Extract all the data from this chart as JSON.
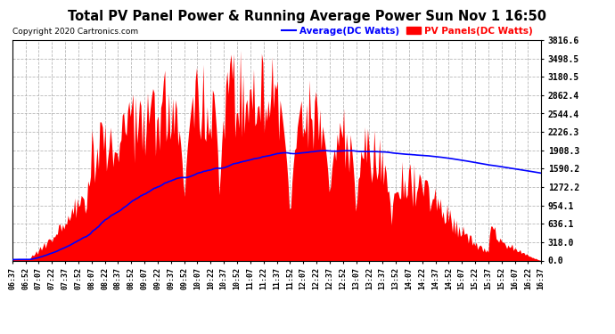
{
  "title": "Total PV Panel Power & Running Average Power Sun Nov 1 16:50",
  "copyright": "Copyright 2020 Cartronics.com",
  "legend_avg": "Average(DC Watts)",
  "legend_pv": "PV Panels(DC Watts)",
  "y_max": 3816.6,
  "y_ticks": [
    0.0,
    318.0,
    636.1,
    954.1,
    1272.2,
    1590.2,
    1908.3,
    2226.3,
    2544.4,
    2862.4,
    3180.5,
    3498.5,
    3816.6
  ],
  "background_color": "#ffffff",
  "grid_color": "#b0b0b0",
  "bar_color": "#ff0000",
  "line_color": "#0000ff",
  "title_color": "#000000",
  "copyright_color": "#000000",
  "legend_avg_color": "#0000ff",
  "legend_pv_color": "#ff0000"
}
